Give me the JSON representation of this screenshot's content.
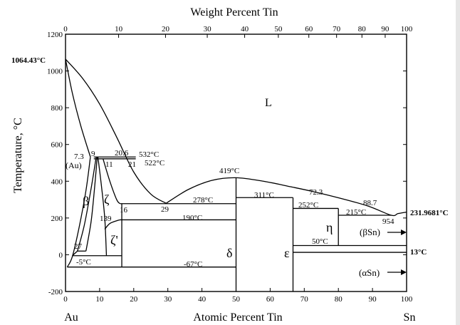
{
  "title_top": "Weight Percent Tin",
  "title_bottom": "Atomic Percent Tin",
  "ylabel": "Temperature, °C",
  "element_left": "Au",
  "element_right": "Sn",
  "axes": {
    "atomic_percent_range": [
      0,
      100
    ],
    "temperature_range": [
      -200,
      1200
    ],
    "weight_ticks": [
      "0",
      "10",
      "20",
      "30",
      "40",
      "50",
      "60",
      "70",
      "80",
      "90",
      "100"
    ],
    "weight_tick_values": [
      0,
      10,
      20,
      30,
      40,
      50,
      60,
      70,
      80,
      90,
      100
    ],
    "atomic_ticks": [
      "0",
      "10",
      "20",
      "30",
      "40",
      "50",
      "60",
      "70",
      "80",
      "90",
      "100"
    ],
    "atomic_tick_values": [
      0,
      10,
      20,
      30,
      40,
      50,
      60,
      70,
      80,
      90,
      100
    ],
    "temp_ticks": [
      "-200",
      "0",
      "200",
      "400",
      "600",
      "800",
      "1000",
      "1200"
    ],
    "temp_tick_values": [
      -200,
      0,
      200,
      400,
      600,
      800,
      1000,
      1200
    ]
  },
  "phases": {
    "liquid": "L",
    "au_solid": "(Au)",
    "beta": "β",
    "zeta": "ζ",
    "zeta_prime": "ζ'",
    "delta": "δ",
    "epsilon": "ε",
    "eta": "η",
    "beta_sn": "(βSn)",
    "alpha_sn": "(αSn)"
  },
  "annotations": {
    "au_melting": "1064.43°C",
    "sn_melting": "231.9681°C",
    "sn_transition": "13°C",
    "t532": "532°C",
    "t522": "522°C",
    "t419": "419°C",
    "t278": "278°C",
    "t311": "311°C",
    "t252": "252°C",
    "t215": "215°C",
    "t190": "190°C",
    "t50": "50°C",
    "tm5": "-5°C",
    "tm67": "-67°C",
    "c7_3": "7.3",
    "c9": "9",
    "c11": "11",
    "c20_6": "20.6",
    "c21": "21",
    "c29": "29",
    "c16": "16",
    "c139": "139",
    "c27": "27",
    "c72_3": "72.3",
    "c88_7": "88.7",
    "c95_4": "954"
  },
  "curves": {
    "liquidus_left": [
      [
        0,
        1064.43
      ],
      [
        5,
        960
      ],
      [
        10,
        820
      ],
      [
        15,
        640
      ],
      [
        20,
        450
      ],
      [
        25,
        330
      ],
      [
        29.5,
        280
      ]
    ],
    "solidus_au": [
      [
        0,
        1064.43
      ],
      [
        2,
        880
      ],
      [
        4.5,
        700
      ],
      [
        7.3,
        532
      ]
    ],
    "liquidus_right": [
      [
        29.5,
        280
      ],
      [
        36,
        355
      ],
      [
        43,
        405
      ],
      [
        50,
        419
      ],
      [
        58,
        400
      ],
      [
        66,
        370
      ],
      [
        72.3,
        345
      ],
      [
        80,
        310
      ],
      [
        88.7,
        265
      ],
      [
        95.5,
        215
      ],
      [
        97.5,
        224
      ],
      [
        100,
        231.9681
      ]
    ],
    "au_solvus": [
      [
        7.3,
        532
      ],
      [
        6,
        350
      ],
      [
        4,
        150
      ],
      [
        2,
        -10
      ],
      [
        0.5,
        -67
      ]
    ],
    "beta_left": [
      [
        3.5,
        20
      ],
      [
        5.5,
        160
      ],
      [
        7.5,
        360
      ],
      [
        9,
        532
      ]
    ],
    "beta_right": [
      [
        6,
        20
      ],
      [
        7.5,
        180
      ],
      [
        8.5,
        360
      ],
      [
        9.3,
        532
      ]
    ],
    "zeta_left": [
      [
        9.5,
        532
      ],
      [
        10.5,
        380
      ],
      [
        11.5,
        200
      ],
      [
        12,
        -5
      ]
    ],
    "zeta_right": [
      [
        11,
        522
      ],
      [
        13,
        400
      ],
      [
        15,
        300
      ],
      [
        16,
        278
      ]
    ],
    "zeta_prime_curve": [
      [
        11.5,
        139
      ],
      [
        13,
        170
      ],
      [
        15,
        185
      ],
      [
        16,
        190
      ]
    ]
  },
  "lines": {
    "h532": [
      [
        8.3,
        532
      ],
      [
        20.6,
        532
      ]
    ],
    "h522": [
      [
        8.3,
        522
      ],
      [
        20.6,
        522
      ]
    ],
    "h278": [
      [
        16,
        278
      ],
      [
        50,
        278
      ]
    ],
    "h190": [
      [
        16,
        190
      ],
      [
        50,
        190
      ]
    ],
    "h311": [
      [
        50,
        311
      ],
      [
        66.7,
        311
      ]
    ],
    "h252": [
      [
        66.7,
        252
      ],
      [
        80,
        252
      ]
    ],
    "h215": [
      [
        80,
        215
      ],
      [
        95.5,
        215
      ]
    ],
    "h50": [
      [
        66.7,
        50
      ],
      [
        100,
        50
      ]
    ],
    "h13": [
      [
        66.7,
        13
      ],
      [
        100,
        13
      ]
    ],
    "hm5": [
      [
        2,
        -5
      ],
      [
        16.5,
        -5
      ]
    ],
    "hm67": [
      [
        0.5,
        -67
      ],
      [
        50,
        -67
      ]
    ],
    "v16": [
      [
        16.5,
        -67
      ],
      [
        16.5,
        278
      ]
    ],
    "v50": [
      [
        50,
        -200
      ],
      [
        50,
        419
      ]
    ],
    "v66": [
      [
        66.7,
        -200
      ],
      [
        66.7,
        311
      ]
    ],
    "v80": [
      [
        80,
        50
      ],
      [
        80,
        252
      ]
    ],
    "vb": [
      [
        2,
        -5
      ],
      [
        3.5,
        20
      ]
    ],
    "h27": [
      [
        3.5,
        20
      ],
      [
        6,
        20
      ]
    ]
  }
}
